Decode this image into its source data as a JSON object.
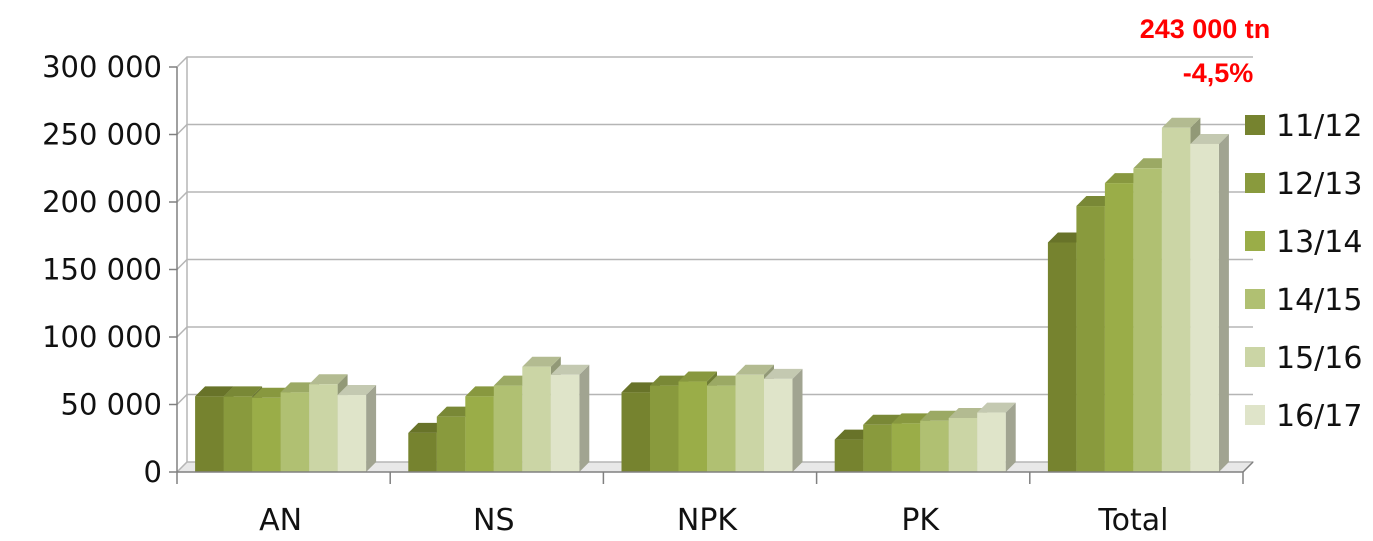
{
  "colors": {
    "series": [
      "#76832f",
      "#899a3d",
      "#9aad48",
      "#b0c072",
      "#cbd5a5",
      "#dfe4c9"
    ],
    "annotation": "#ff0000",
    "grid": "#b5b5b5",
    "axis": "#808080"
  },
  "annotations": {
    "total_label": "243 000 tn",
    "change_label": "-4,5%"
  },
  "chart_data": {
    "type": "bar",
    "categories": [
      "AN",
      "NS",
      "NPK",
      "PK",
      "Total"
    ],
    "y_ticks": [
      "0",
      "50 000",
      "100 000",
      "150 000",
      "200 000",
      "250 000",
      "300 000"
    ],
    "ylim": [
      0,
      300000
    ],
    "grid": true,
    "legend_position": "right",
    "series": [
      {
        "name": "11/12",
        "values": [
          56000,
          29000,
          59000,
          24000,
          170000
        ]
      },
      {
        "name": "12/13",
        "values": [
          56000,
          41000,
          64000,
          35000,
          197000
        ]
      },
      {
        "name": "13/14",
        "values": [
          55000,
          56000,
          67000,
          36000,
          214000
        ]
      },
      {
        "name": "14/15",
        "values": [
          59000,
          64000,
          64000,
          38000,
          225000
        ]
      },
      {
        "name": "15/16",
        "values": [
          65000,
          78000,
          72000,
          40000,
          255000
        ]
      },
      {
        "name": "16/17",
        "values": [
          57000,
          72000,
          69000,
          44000,
          243000
        ]
      }
    ]
  }
}
